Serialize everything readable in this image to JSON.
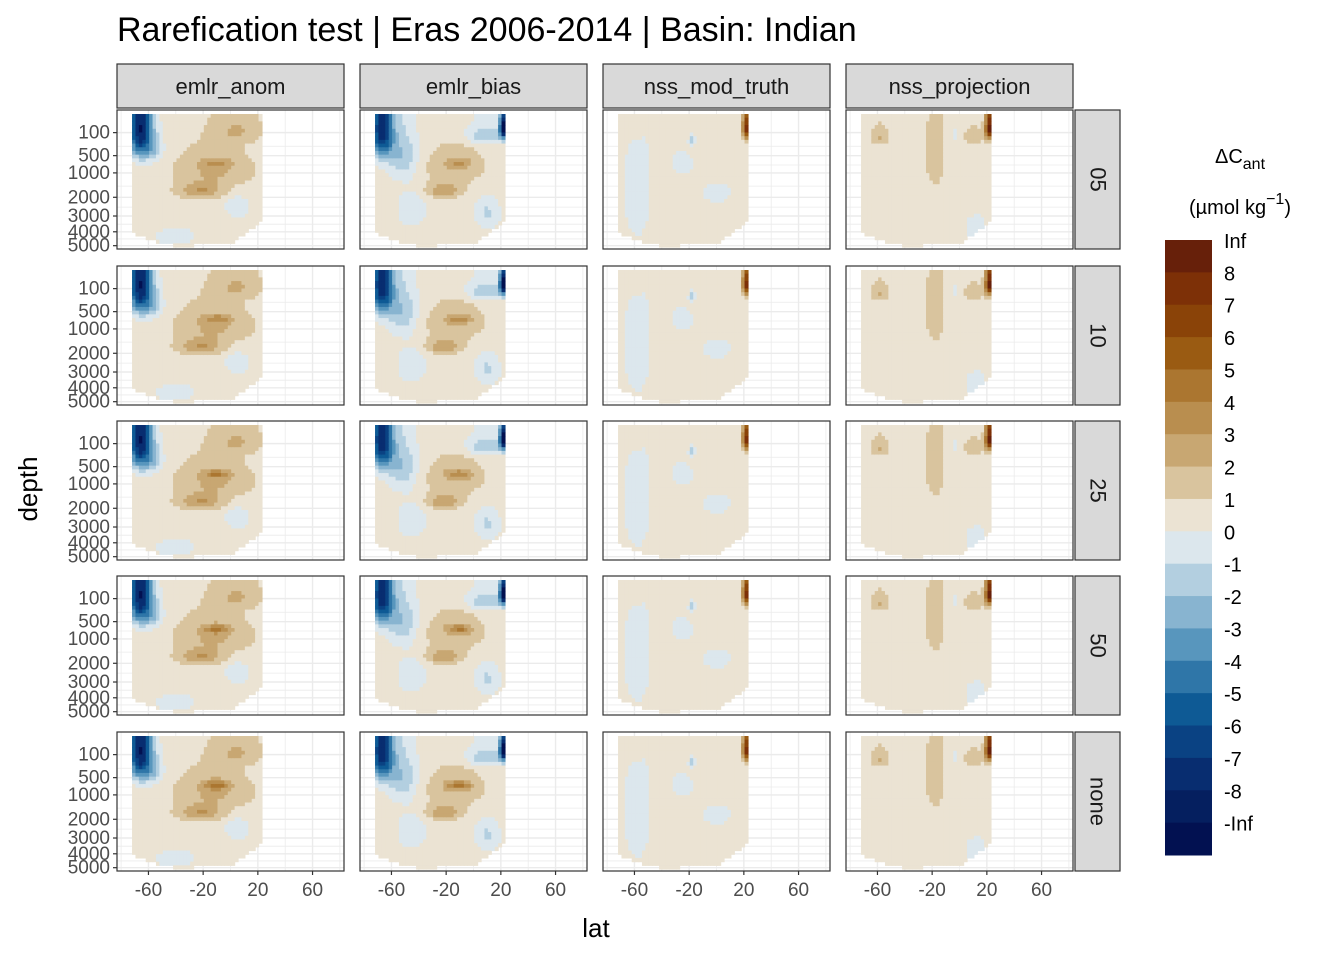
{
  "chart_data": {
    "type": "heatmap",
    "title": "Rarefication test | Eras 2006-2014 | Basin: Indian",
    "xlabel": "lat",
    "ylabel": "depth",
    "columns": [
      "emlr_anom",
      "emlr_bias",
      "nss_mod_truth",
      "nss_projection"
    ],
    "rows": [
      "05",
      "10",
      "25",
      "50",
      "none"
    ],
    "x_ticks": [
      -60,
      -20,
      20,
      60
    ],
    "x_tick_labels": [
      "-60",
      "-20",
      "20",
      "60"
    ],
    "xlim": [
      -83,
      83
    ],
    "y_ticks": [
      100,
      500,
      1000,
      2000,
      3000,
      4000,
      5000
    ],
    "y_tick_labels": [
      "100",
      "500",
      "1000",
      "2000",
      "3000",
      "4000",
      "5000"
    ],
    "ylim": [
      5100,
      0
    ],
    "y_scale": "sqrt, reversed",
    "data_lat_range": [
      -72,
      24
    ],
    "grid": true,
    "legend": {
      "position": "right",
      "title_main": "ΔC",
      "title_sub": "ant",
      "title_unit_pre": "(µmol kg",
      "title_unit_sup": "−1",
      "title_unit_post": ")",
      "bins": [
        {
          "label": "Inf",
          "color": "#67200a"
        },
        {
          "label": "8",
          "color": "#7d3007"
        },
        {
          "label": "7",
          "color": "#8a4308"
        },
        {
          "label": "6",
          "color": "#9a5b12"
        },
        {
          "label": "5",
          "color": "#ab7630"
        },
        {
          "label": "4",
          "color": "#b98e4f"
        },
        {
          "label": "3",
          "color": "#c8a772"
        },
        {
          "label": "2",
          "color": "#d9c49e"
        },
        {
          "label": "1",
          "color": "#ebe3d3"
        },
        {
          "label": "0",
          "color": "#dce7ed"
        },
        {
          "label": "-1",
          "color": "#b3cfe0"
        },
        {
          "label": "-2",
          "color": "#88b4d0"
        },
        {
          "label": "-3",
          "color": "#5896bd"
        },
        {
          "label": "-4",
          "color": "#2f76a8"
        },
        {
          "label": "-5",
          "color": "#0e5a95"
        },
        {
          "label": "-6",
          "color": "#0a4283"
        },
        {
          "label": "-7",
          "color": "#082d70"
        },
        {
          "label": "-8",
          "color": "#051f5f"
        },
        {
          "label": "-Inf",
          "color": "#021151"
        }
      ]
    },
    "approximate_field_description": {
      "emlr_anom": "mostly 0 to 2; negative values to about -7 near the surface at -70 to -50 lat; positive 1 to 3 band between 1000-2000 m",
      "emlr_bias": "like emlr_anom with additional negative (0 to -2) zones at depth and a strong negative (about -7) surface spot at ~20 lat",
      "nss_mod_truth": "mostly 0 to 1 and -1 to 0; small positive (about 6) surface spot near 20 lat",
      "nss_projection": "mostly 0 to 1; positive (1 to 3) patches near the surface and mid-depth; strong positive (about 7) spot near 20 lat surface"
    }
  }
}
